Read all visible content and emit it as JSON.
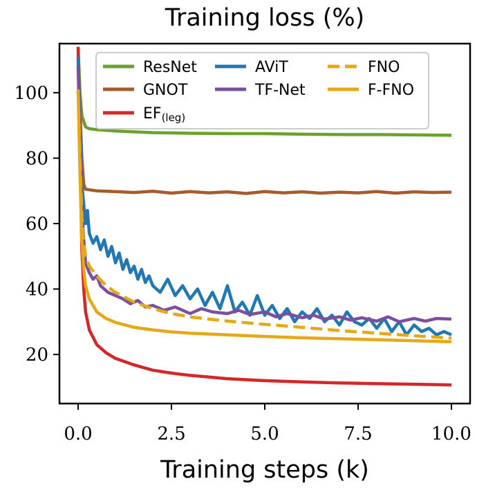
{
  "chart_data": {
    "type": "line",
    "title": "Training loss (%)",
    "xlabel": "Training steps (k)",
    "ylabel": "",
    "xlim": [
      -0.5,
      10.5
    ],
    "ylim": [
      5,
      115
    ],
    "x_ticks": [
      0.0,
      2.5,
      5.0,
      7.5,
      10.0
    ],
    "x_tick_labels": [
      "0.0",
      "2.5",
      "5.0",
      "7.5",
      "10.0"
    ],
    "y_ticks": [
      20,
      40,
      60,
      80,
      100
    ],
    "y_tick_labels": [
      "20",
      "40",
      "60",
      "80",
      "100"
    ],
    "legend_position": "top",
    "series": [
      {
        "name": "ResNet",
        "color": "#6aa22a",
        "dash": false,
        "x": [
          0,
          0.05,
          0.1,
          0.2,
          0.3,
          0.5,
          1.0,
          2.0,
          3.0,
          4.0,
          5.0,
          6.0,
          7.0,
          8.0,
          9.0,
          10.0
        ],
        "y": [
          114,
          100,
          93,
          89.5,
          89,
          88.7,
          88.3,
          87.8,
          87.6,
          87.5,
          87.5,
          87.3,
          87.2,
          87.2,
          87.1,
          87.0
        ]
      },
      {
        "name": "GNOT",
        "color": "#a85a2a",
        "dash": false,
        "x": [
          0,
          0.05,
          0.1,
          0.15,
          0.2,
          0.5,
          1.0,
          1.5,
          2.0,
          2.5,
          3.0,
          3.5,
          4.0,
          4.5,
          5.0,
          5.5,
          6.0,
          6.5,
          7.0,
          7.5,
          8.0,
          8.5,
          9.0,
          9.5,
          10.0
        ],
        "y": [
          110,
          95,
          80,
          72,
          70.5,
          70,
          69.8,
          69.5,
          69.9,
          69.3,
          69.8,
          69.4,
          69.7,
          69.2,
          69.8,
          69.4,
          69.7,
          69.3,
          69.6,
          69.4,
          69.8,
          69.3,
          69.7,
          69.5,
          69.6
        ]
      },
      {
        "name": "EF(leg)",
        "color": "#d62728",
        "dash": false,
        "x": [
          0,
          0.05,
          0.1,
          0.15,
          0.2,
          0.3,
          0.5,
          0.75,
          1.0,
          1.5,
          2.0,
          2.5,
          3.0,
          4.0,
          5.0,
          6.0,
          7.0,
          8.0,
          9.0,
          10.0
        ],
        "y": [
          114,
          80,
          52,
          40,
          33,
          27.5,
          23,
          20.5,
          18.8,
          16.8,
          15.2,
          14.3,
          13.6,
          12.6,
          12.0,
          11.6,
          11.3,
          11.1,
          10.9,
          10.7
        ]
      },
      {
        "name": "AViT",
        "color": "#1f77b4",
        "dash": false,
        "x": [
          0,
          0.05,
          0.1,
          0.15,
          0.2,
          0.25,
          0.3,
          0.4,
          0.5,
          0.6,
          0.7,
          0.8,
          0.9,
          1.0,
          1.1,
          1.2,
          1.3,
          1.4,
          1.5,
          1.6,
          1.7,
          1.8,
          1.9,
          2.0,
          2.2,
          2.4,
          2.6,
          2.8,
          3.0,
          3.2,
          3.4,
          3.6,
          3.8,
          4.0,
          4.2,
          4.4,
          4.6,
          4.8,
          5.0,
          5.2,
          5.4,
          5.6,
          5.8,
          6.0,
          6.2,
          6.4,
          6.6,
          6.8,
          7.0,
          7.2,
          7.4,
          7.6,
          7.8,
          8.0,
          8.2,
          8.4,
          8.6,
          8.8,
          9.0,
          9.2,
          9.4,
          9.6,
          9.8,
          10.0
        ],
        "y": [
          111,
          90,
          72,
          66,
          60,
          64,
          57,
          54,
          56,
          52,
          55,
          50,
          53,
          48,
          51,
          46,
          49,
          45,
          47,
          43,
          46,
          42,
          44,
          41,
          39,
          43,
          38,
          41,
          37,
          40,
          35,
          39,
          34,
          41,
          33,
          36,
          32,
          38,
          32,
          35,
          31,
          34,
          30,
          33,
          31,
          34,
          30,
          32,
          29,
          33,
          30,
          29,
          31,
          28,
          31,
          27,
          30,
          26,
          29,
          27,
          28,
          26,
          27,
          26
        ]
      },
      {
        "name": "TF-Net",
        "color": "#7b4fa0",
        "dash": false,
        "x": [
          0,
          0.05,
          0.1,
          0.15,
          0.2,
          0.3,
          0.4,
          0.5,
          0.6,
          0.8,
          1.0,
          1.2,
          1.4,
          1.6,
          1.8,
          2.0,
          2.3,
          2.6,
          3.0,
          3.3,
          3.6,
          4.0,
          4.3,
          4.6,
          5.0,
          5.3,
          5.6,
          6.0,
          6.3,
          6.6,
          7.0,
          7.3,
          7.6,
          8.0,
          8.3,
          8.6,
          9.0,
          9.3,
          9.6,
          10.0
        ],
        "y": [
          108,
          85,
          65,
          55,
          48,
          45,
          43,
          44,
          41,
          39,
          38,
          37,
          35.5,
          36.5,
          34.5,
          35,
          33.5,
          34.5,
          32.5,
          34,
          33,
          32.5,
          33.5,
          32.2,
          33,
          31.5,
          32.5,
          31.2,
          32,
          30.8,
          31.5,
          30.5,
          31.2,
          30.2,
          31.5,
          30,
          31,
          30.2,
          31,
          30.8
        ]
      },
      {
        "name": "FNO",
        "color": "#e6a817",
        "dash": true,
        "x": [
          0,
          0.05,
          0.1,
          0.15,
          0.2,
          0.3,
          0.5,
          0.75,
          1.0,
          1.5,
          2.0,
          2.5,
          3.0,
          3.5,
          4.0,
          5.0,
          6.0,
          7.0,
          8.0,
          9.0,
          10.0
        ],
        "y": [
          101,
          80,
          62,
          54,
          50,
          47,
          44,
          41,
          39,
          36,
          34,
          32.5,
          31.5,
          30.8,
          30.2,
          29.2,
          28.3,
          27.3,
          26.5,
          25.7,
          25.0
        ]
      },
      {
        "name": "F-FNO",
        "color": "#e6a817",
        "dash": false,
        "x": [
          0,
          0.05,
          0.1,
          0.15,
          0.2,
          0.3,
          0.5,
          0.75,
          1.0,
          1.5,
          2.0,
          2.5,
          3.0,
          4.0,
          5.0,
          6.0,
          7.0,
          8.0,
          9.0,
          10.0
        ],
        "y": [
          101,
          75,
          55,
          46,
          41,
          37,
          33,
          31,
          29.8,
          28.3,
          27.5,
          26.9,
          26.5,
          26.0,
          25.5,
          25.1,
          24.8,
          24.5,
          24.2,
          23.9
        ]
      }
    ]
  },
  "legend": {
    "columns": [
      [
        {
          "label": "ResNet",
          "color": "#6aa22a",
          "dash": false
        },
        {
          "label": "GNOT",
          "color": "#a85a2a",
          "dash": false
        },
        {
          "label": "EF",
          "sub": "(leg)",
          "color": "#d62728",
          "dash": false
        }
      ],
      [
        {
          "label": "AViT",
          "color": "#1f77b4",
          "dash": false
        },
        {
          "label": "TF-Net",
          "color": "#7b4fa0",
          "dash": false
        }
      ],
      [
        {
          "label": "FNO",
          "color": "#e6a817",
          "dash": true
        },
        {
          "label": "F-FNO",
          "color": "#e6a817",
          "dash": false
        }
      ]
    ]
  }
}
